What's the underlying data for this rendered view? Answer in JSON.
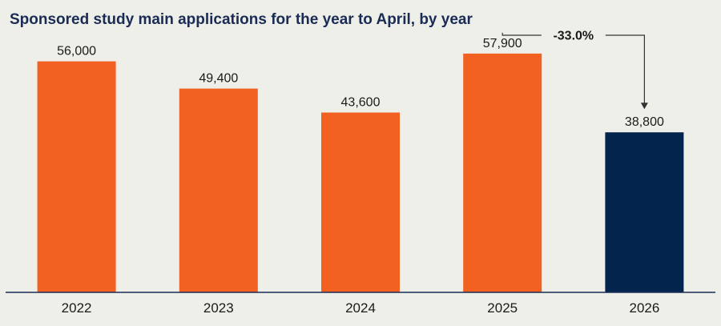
{
  "chart_data": {
    "type": "bar",
    "title": "Sponsored study main applications for the year to April, by year",
    "xlabel": "",
    "ylabel": "",
    "categories": [
      "2022",
      "2023",
      "2024",
      "2025",
      "2026"
    ],
    "values": [
      56000,
      49400,
      43600,
      57900,
      38800
    ],
    "value_labels": [
      "56,000",
      "49,400",
      "43,600",
      "57,900",
      "38,800"
    ],
    "ylim": [
      0,
      67000
    ],
    "grid": false,
    "legend": "none",
    "colors": {
      "default_bar": "#f26122",
      "highlight_bar": "#03244d",
      "axis": "#1a2c55",
      "title": "#1a2c55"
    },
    "highlight_index": 4,
    "annotation": {
      "label": "-33.0%",
      "from_index": 3,
      "to_index": 4
    }
  }
}
